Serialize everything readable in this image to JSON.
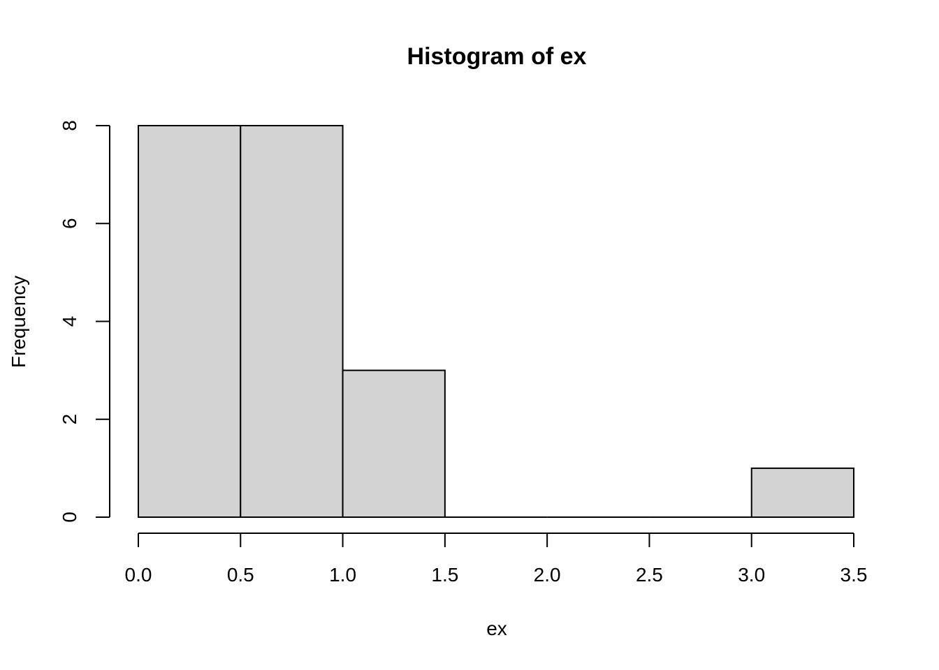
{
  "chart_data": {
    "type": "bar",
    "title": "Histogram of ex",
    "xlabel": "ex",
    "ylabel": "Frequency",
    "bins": [
      {
        "start": 0.0,
        "end": 0.5,
        "count": 8
      },
      {
        "start": 0.5,
        "end": 1.0,
        "count": 8
      },
      {
        "start": 1.0,
        "end": 1.5,
        "count": 3
      },
      {
        "start": 1.5,
        "end": 2.0,
        "count": 0
      },
      {
        "start": 2.0,
        "end": 2.5,
        "count": 0
      },
      {
        "start": 2.5,
        "end": 3.0,
        "count": 0
      },
      {
        "start": 3.0,
        "end": 3.5,
        "count": 1
      }
    ],
    "x_ticks": [
      "0.0",
      "0.5",
      "1.0",
      "1.5",
      "2.0",
      "2.5",
      "3.0",
      "3.5"
    ],
    "y_ticks": [
      "0",
      "2",
      "4",
      "6",
      "8"
    ],
    "xlim": [
      0,
      3.5
    ],
    "ylim": [
      0,
      8
    ],
    "grid": false,
    "bar_color": "#d3d3d3"
  }
}
